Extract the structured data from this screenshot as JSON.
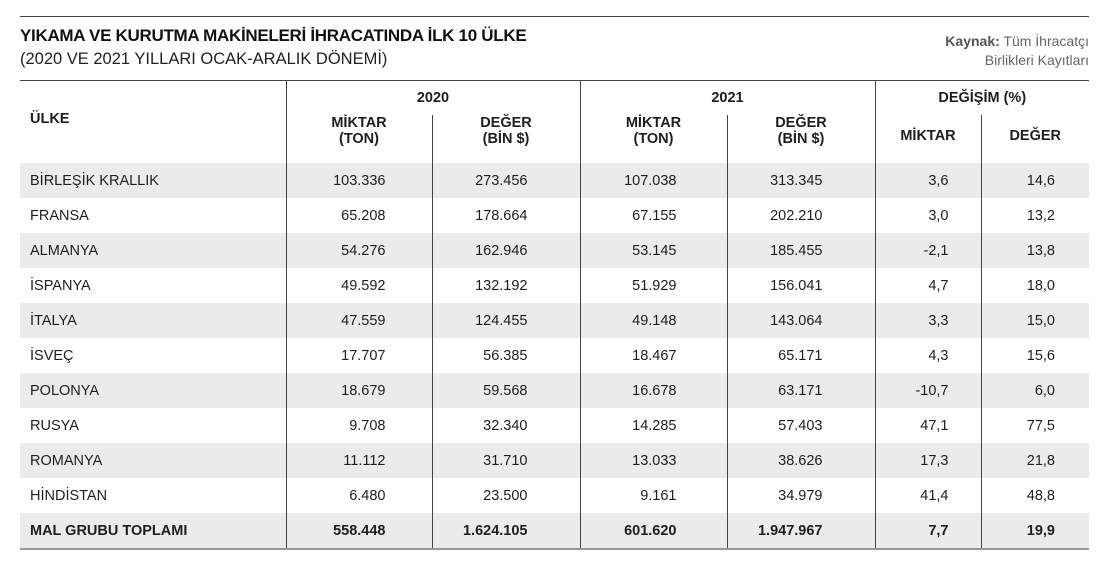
{
  "header": {
    "title": "YIKAMA VE KURUTMA MAKİNELERİ İHRACATINDA İLK 10 ÜLKE",
    "subtitle": "(2020 VE 2021 YILLARI OCAK-ARALIK DÖNEMİ)",
    "source_label": "Kaynak:",
    "source_line1": "Tüm İhracatçı",
    "source_line2": "Birlikleri Kayıtları"
  },
  "table": {
    "country_header": "ÜLKE",
    "groups": [
      "2020",
      "2021",
      "DEĞİŞİM (%)"
    ],
    "sub_headers": {
      "miktar_ton_1": "MİKTAR",
      "miktar_ton_2": "(TON)",
      "deger_bin_1": "DEĞER",
      "deger_bin_2": "(BİN $)",
      "miktar": "MİKTAR",
      "deger": "DEĞER"
    },
    "rows": [
      [
        "BİRLEŞİK KRALLIK",
        "103.336",
        "273.456",
        "107.038",
        "313.345",
        "3,6",
        "14,6"
      ],
      [
        "FRANSA",
        "65.208",
        "178.664",
        "67.155",
        "202.210",
        "3,0",
        "13,2"
      ],
      [
        "ALMANYA",
        "54.276",
        "162.946",
        "53.145",
        "185.455",
        "-2,1",
        "13,8"
      ],
      [
        "İSPANYA",
        "49.592",
        "132.192",
        "51.929",
        "156.041",
        "4,7",
        "18,0"
      ],
      [
        "İTALYA",
        "47.559",
        "124.455",
        "49.148",
        "143.064",
        "3,3",
        "15,0"
      ],
      [
        "İSVEÇ",
        "17.707",
        "56.385",
        "18.467",
        "65.171",
        "4,3",
        "15,6"
      ],
      [
        "POLONYA",
        "18.679",
        "59.568",
        "16.678",
        "63.171",
        "-10,7",
        "6,0"
      ],
      [
        "RUSYA",
        "9.708",
        "32.340",
        "14.285",
        "57.403",
        "47,1",
        "77,5"
      ],
      [
        "ROMANYA",
        "11.112",
        "31.710",
        "13.033",
        "38.626",
        "17,3",
        "21,8"
      ],
      [
        "HİNDİSTAN",
        "6.480",
        "23.500",
        "9.161",
        "34.979",
        "41,4",
        "48,8"
      ]
    ],
    "total": [
      "MAL GRUBU TOPLAMI",
      "558.448",
      "1.624.105",
      "601.620",
      "1.947.967",
      "7,7",
      "19,9"
    ]
  }
}
